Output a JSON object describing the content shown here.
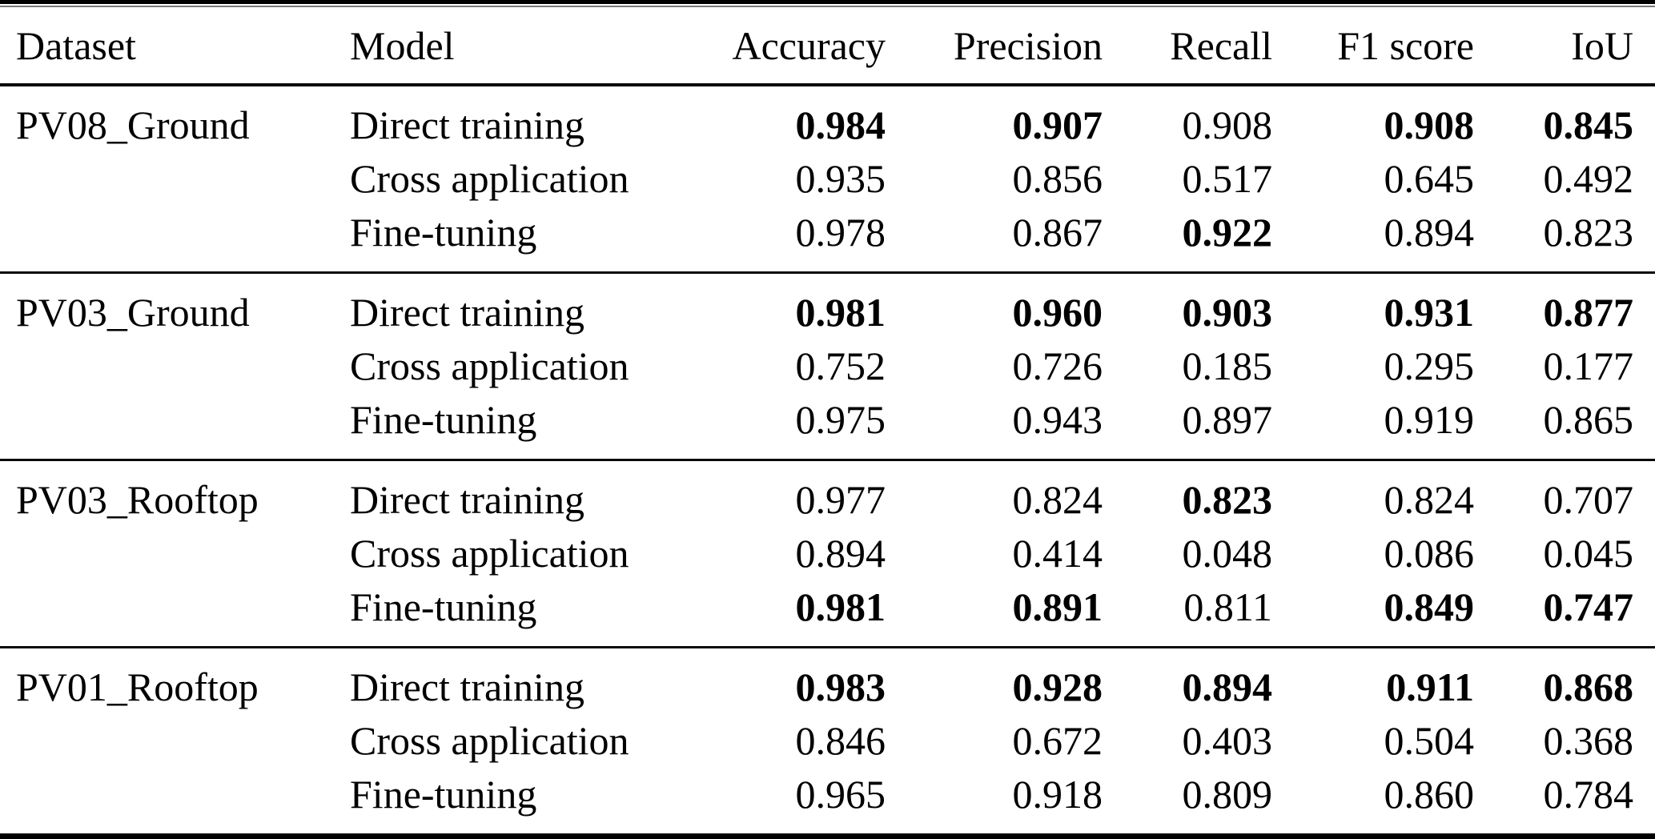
{
  "table": {
    "columns": [
      "Dataset",
      "Model",
      "Accuracy",
      "Precision",
      "Recall",
      "F1 score",
      "IoU"
    ],
    "text_color": "#000000",
    "background_color": "#ffffff",
    "sections": [
      {
        "dataset": "PV08_Ground",
        "rows": [
          {
            "model": "Direct training",
            "values": [
              "0.984",
              "0.907",
              "0.908",
              "0.908",
              "0.845"
            ],
            "bold": [
              true,
              true,
              false,
              true,
              true
            ]
          },
          {
            "model": "Cross application",
            "values": [
              "0.935",
              "0.856",
              "0.517",
              "0.645",
              "0.492"
            ],
            "bold": [
              false,
              false,
              false,
              false,
              false
            ]
          },
          {
            "model": "Fine-tuning",
            "values": [
              "0.978",
              "0.867",
              "0.922",
              "0.894",
              "0.823"
            ],
            "bold": [
              false,
              false,
              true,
              false,
              false
            ]
          }
        ]
      },
      {
        "dataset": "PV03_Ground",
        "rows": [
          {
            "model": "Direct training",
            "values": [
              "0.981",
              "0.960",
              "0.903",
              "0.931",
              "0.877"
            ],
            "bold": [
              true,
              true,
              true,
              true,
              true
            ]
          },
          {
            "model": "Cross application",
            "values": [
              "0.752",
              "0.726",
              "0.185",
              "0.295",
              "0.177"
            ],
            "bold": [
              false,
              false,
              false,
              false,
              false
            ]
          },
          {
            "model": "Fine-tuning",
            "values": [
              "0.975",
              "0.943",
              "0.897",
              "0.919",
              "0.865"
            ],
            "bold": [
              false,
              false,
              false,
              false,
              false
            ]
          }
        ]
      },
      {
        "dataset": "PV03_Rooftop",
        "rows": [
          {
            "model": "Direct training",
            "values": [
              "0.977",
              "0.824",
              "0.823",
              "0.824",
              "0.707"
            ],
            "bold": [
              false,
              false,
              true,
              false,
              false
            ]
          },
          {
            "model": "Cross application",
            "values": [
              "0.894",
              "0.414",
              "0.048",
              "0.086",
              "0.045"
            ],
            "bold": [
              false,
              false,
              false,
              false,
              false
            ]
          },
          {
            "model": "Fine-tuning",
            "values": [
              "0.981",
              "0.891",
              "0.811",
              "0.849",
              "0.747"
            ],
            "bold": [
              true,
              true,
              false,
              true,
              true
            ]
          }
        ]
      },
      {
        "dataset": "PV01_Rooftop",
        "rows": [
          {
            "model": "Direct training",
            "values": [
              "0.983",
              "0.928",
              "0.894",
              "0.911",
              "0.868"
            ],
            "bold": [
              true,
              true,
              true,
              true,
              true
            ]
          },
          {
            "model": "Cross application",
            "values": [
              "0.846",
              "0.672",
              "0.403",
              "0.504",
              "0.368"
            ],
            "bold": [
              false,
              false,
              false,
              false,
              false
            ]
          },
          {
            "model": "Fine-tuning",
            "values": [
              "0.965",
              "0.918",
              "0.809",
              "0.860",
              "0.784"
            ],
            "bold": [
              false,
              false,
              false,
              false,
              false
            ]
          }
        ]
      }
    ]
  }
}
